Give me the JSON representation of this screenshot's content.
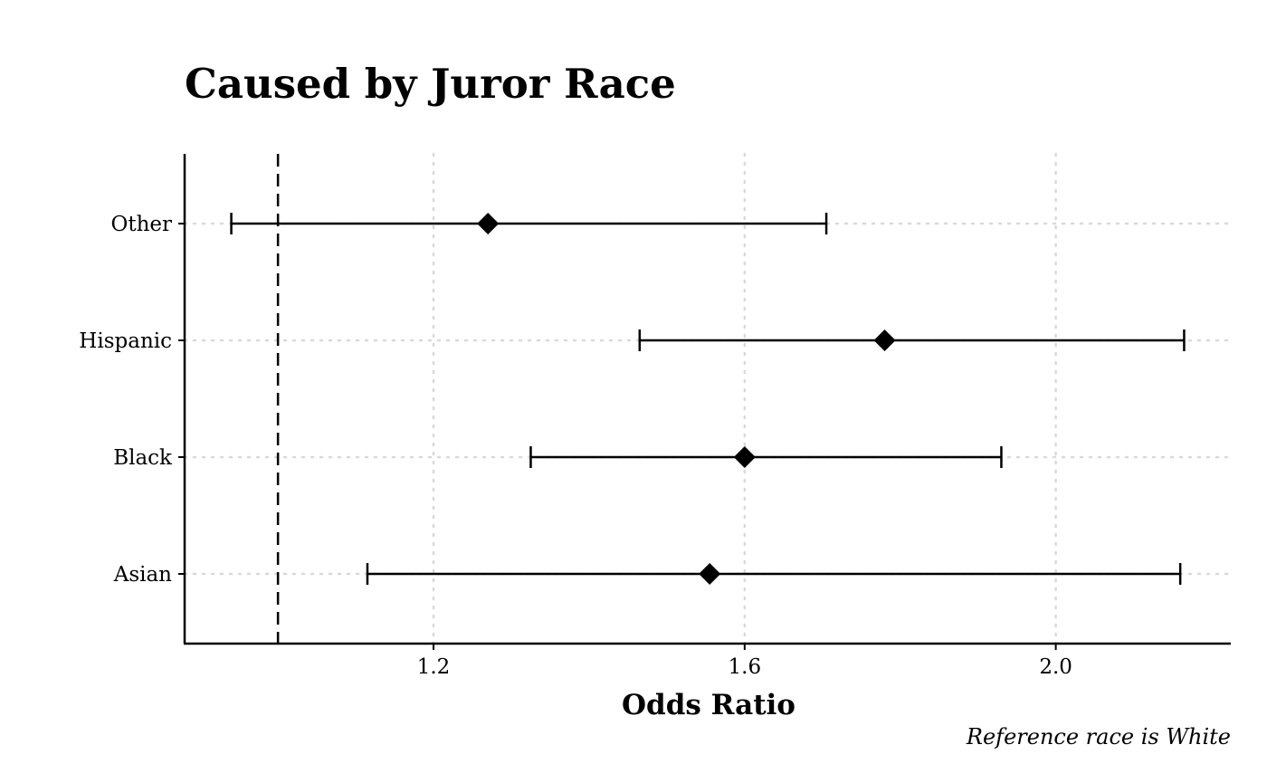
{
  "chart_data": {
    "type": "forest",
    "title": "Caused by Juror Race",
    "xlabel": "Odds Ratio",
    "ylabel": "",
    "caption": "Reference race is White",
    "xlim": [
      0.88,
      2.225
    ],
    "xticks": [
      1.2,
      1.6,
      2.0
    ],
    "xtick_labels": [
      "1.2",
      "1.6",
      "2.0"
    ],
    "reference_line": 1.0,
    "grid": "dotted, light gray",
    "categories": [
      "Asian",
      "Black",
      "Hispanic",
      "Other"
    ],
    "series": [
      {
        "points": [
          {
            "label": "Asian",
            "estimate": 1.555,
            "lower": 1.115,
            "upper": 2.16
          },
          {
            "label": "Black",
            "estimate": 1.6,
            "lower": 1.325,
            "upper": 1.93
          },
          {
            "label": "Hispanic",
            "estimate": 1.78,
            "lower": 1.465,
            "upper": 2.165
          },
          {
            "label": "Other",
            "estimate": 1.27,
            "lower": 0.94,
            "upper": 1.705
          }
        ]
      }
    ]
  }
}
